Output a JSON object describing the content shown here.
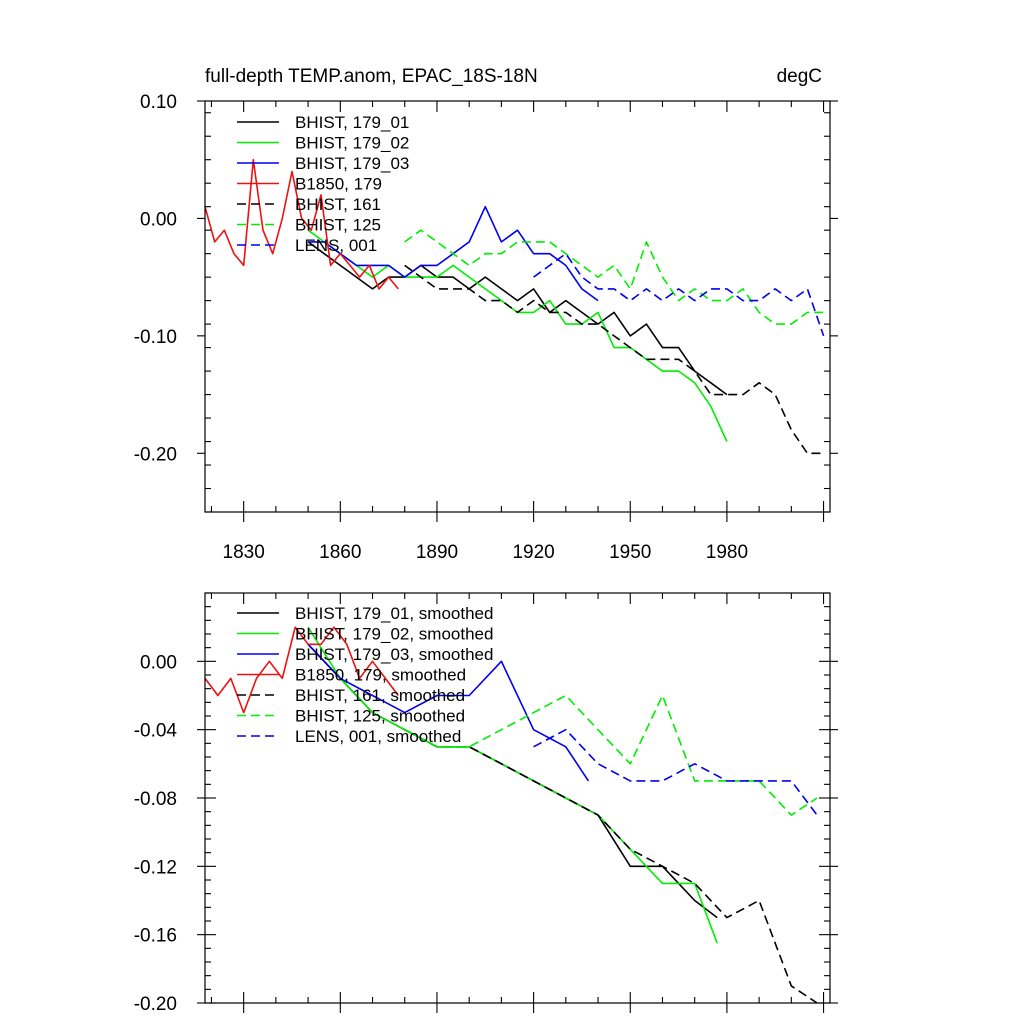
{
  "chart_data": [
    {
      "type": "line",
      "title": "full-depth TEMP.anom, EPAC_18S-18N",
      "units": "degC",
      "xlabel": "",
      "ylabel": "",
      "xlim": [
        1818,
        2012
      ],
      "ylim": [
        -0.25,
        0.1
      ],
      "xticks": [
        "1830",
        "1860",
        "1890",
        "1920",
        "1950",
        "1980"
      ],
      "yticks": [
        "0.10",
        "0.00",
        "-0.10",
        "-0.20"
      ],
      "legend": "top-left",
      "series": [
        {
          "name": "BHIST, 179_01",
          "color": "#000000",
          "dash": "solid",
          "x": [
            1850,
            1855,
            1860,
            1865,
            1870,
            1875,
            1880,
            1885,
            1890,
            1895,
            1900,
            1905,
            1910,
            1915,
            1920,
            1925,
            1930,
            1935,
            1940,
            1945,
            1950,
            1955,
            1960,
            1965,
            1970,
            1975,
            1980
          ],
          "y": [
            -0.02,
            -0.03,
            -0.04,
            -0.05,
            -0.06,
            -0.05,
            -0.05,
            -0.04,
            -0.05,
            -0.05,
            -0.06,
            -0.05,
            -0.06,
            -0.07,
            -0.06,
            -0.08,
            -0.07,
            -0.08,
            -0.09,
            -0.08,
            -0.1,
            -0.09,
            -0.11,
            -0.11,
            -0.13,
            -0.14,
            -0.15
          ]
        },
        {
          "name": "BHIST, 179_02",
          "color": "#00ee00",
          "dash": "solid",
          "x": [
            1850,
            1855,
            1860,
            1865,
            1870,
            1875,
            1880,
            1885,
            1890,
            1895,
            1900,
            1905,
            1910,
            1915,
            1920,
            1925,
            1930,
            1935,
            1940,
            1945,
            1950,
            1955,
            1960,
            1965,
            1970,
            1975,
            1980
          ],
          "y": [
            -0.01,
            -0.02,
            -0.03,
            -0.04,
            -0.05,
            -0.04,
            -0.05,
            -0.05,
            -0.05,
            -0.04,
            -0.05,
            -0.06,
            -0.07,
            -0.08,
            -0.08,
            -0.07,
            -0.09,
            -0.09,
            -0.08,
            -0.11,
            -0.11,
            -0.12,
            -0.13,
            -0.13,
            -0.14,
            -0.16,
            -0.19
          ]
        },
        {
          "name": "BHIST, 179_03",
          "color": "#0000ee",
          "dash": "solid",
          "x": [
            1850,
            1855,
            1860,
            1865,
            1870,
            1875,
            1880,
            1885,
            1890,
            1895,
            1900,
            1905,
            1910,
            1915,
            1920,
            1925,
            1930,
            1935,
            1940
          ],
          "y": [
            -0.02,
            -0.02,
            -0.03,
            -0.04,
            -0.04,
            -0.04,
            -0.05,
            -0.04,
            -0.04,
            -0.03,
            -0.02,
            0.01,
            -0.02,
            -0.01,
            -0.03,
            -0.03,
            -0.04,
            -0.06,
            -0.07
          ]
        },
        {
          "name": "B1850, 179",
          "color": "#ee1111",
          "dash": "solid",
          "x": [
            1818,
            1821,
            1824,
            1827,
            1830,
            1833,
            1836,
            1839,
            1842,
            1845,
            1848,
            1851,
            1854,
            1857,
            1860,
            1863,
            1866,
            1869,
            1872,
            1875,
            1878
          ],
          "y": [
            0.01,
            -0.02,
            -0.01,
            -0.03,
            -0.04,
            0.05,
            -0.01,
            -0.03,
            0.0,
            0.04,
            0.0,
            -0.01,
            0.02,
            -0.04,
            -0.03,
            -0.04,
            -0.05,
            -0.04,
            -0.06,
            -0.05,
            -0.06
          ]
        },
        {
          "name": "BHIST, 161",
          "color": "#000000",
          "dash": "dash",
          "x": [
            1880,
            1885,
            1890,
            1895,
            1900,
            1905,
            1910,
            1915,
            1920,
            1925,
            1930,
            1935,
            1940,
            1945,
            1950,
            1955,
            1960,
            1965,
            1970,
            1975,
            1980,
            1985,
            1990,
            1995,
            2000,
            2005,
            2010
          ],
          "y": [
            -0.04,
            -0.05,
            -0.06,
            -0.06,
            -0.06,
            -0.07,
            -0.07,
            -0.08,
            -0.07,
            -0.08,
            -0.08,
            -0.09,
            -0.09,
            -0.1,
            -0.11,
            -0.12,
            -0.12,
            -0.12,
            -0.13,
            -0.15,
            -0.15,
            -0.15,
            -0.14,
            -0.15,
            -0.18,
            -0.2,
            -0.2
          ]
        },
        {
          "name": "BHIST, 125",
          "color": "#00ee00",
          "dash": "dash",
          "x": [
            1880,
            1885,
            1890,
            1895,
            1900,
            1905,
            1910,
            1915,
            1920,
            1925,
            1930,
            1935,
            1940,
            1945,
            1950,
            1955,
            1960,
            1965,
            1970,
            1975,
            1980,
            1985,
            1990,
            1995,
            2000,
            2005,
            2010
          ],
          "y": [
            -0.02,
            -0.01,
            -0.02,
            -0.03,
            -0.04,
            -0.03,
            -0.03,
            -0.02,
            -0.02,
            -0.02,
            -0.03,
            -0.04,
            -0.05,
            -0.04,
            -0.06,
            -0.02,
            -0.05,
            -0.07,
            -0.06,
            -0.07,
            -0.07,
            -0.06,
            -0.08,
            -0.09,
            -0.09,
            -0.08,
            -0.08
          ]
        },
        {
          "name": "LENS, 001",
          "color": "#0000ee",
          "dash": "dash",
          "x": [
            1920,
            1925,
            1930,
            1935,
            1940,
            1945,
            1950,
            1955,
            1960,
            1965,
            1970,
            1975,
            1980,
            1985,
            1990,
            1995,
            2000,
            2005,
            2010
          ],
          "y": [
            -0.05,
            -0.04,
            -0.03,
            -0.05,
            -0.06,
            -0.06,
            -0.07,
            -0.06,
            -0.07,
            -0.06,
            -0.07,
            -0.06,
            -0.06,
            -0.07,
            -0.07,
            -0.06,
            -0.07,
            -0.06,
            -0.1
          ]
        }
      ]
    },
    {
      "type": "line",
      "title": "",
      "xlabel": "",
      "ylabel": "",
      "xlim": [
        1818,
        2012
      ],
      "ylim": [
        -0.2,
        0.04
      ],
      "xticks": [],
      "yticks": [
        "0.00",
        "-0.04",
        "-0.08",
        "-0.12",
        "-0.16",
        "-0.20"
      ],
      "legend": "top-left",
      "series": [
        {
          "name": "BHIST, 179_01, smoothed",
          "color": "#000000",
          "dash": "solid",
          "x": [
            1850,
            1860,
            1870,
            1880,
            1890,
            1900,
            1910,
            1920,
            1930,
            1940,
            1950,
            1960,
            1970,
            1977
          ],
          "y": [
            0.01,
            -0.01,
            -0.03,
            -0.04,
            -0.05,
            -0.05,
            -0.06,
            -0.07,
            -0.08,
            -0.09,
            -0.12,
            -0.12,
            -0.14,
            -0.15
          ]
        },
        {
          "name": "BHIST, 179_02, smoothed",
          "color": "#00ee00",
          "dash": "solid",
          "x": [
            1850,
            1860,
            1870,
            1880,
            1890,
            1900,
            1910,
            1920,
            1930,
            1940,
            1950,
            1960,
            1970,
            1977
          ],
          "y": [
            0.02,
            -0.01,
            -0.03,
            -0.04,
            -0.05,
            -0.05,
            -0.06,
            -0.07,
            -0.08,
            -0.09,
            -0.11,
            -0.13,
            -0.13,
            -0.165
          ]
        },
        {
          "name": "BHIST, 179_03, smoothed",
          "color": "#0000ee",
          "dash": "solid",
          "x": [
            1850,
            1860,
            1870,
            1880,
            1890,
            1900,
            1910,
            1920,
            1930,
            1937
          ],
          "y": [
            0.01,
            -0.01,
            -0.02,
            -0.03,
            -0.02,
            -0.02,
            0.0,
            -0.04,
            -0.05,
            -0.07
          ]
        },
        {
          "name": "B1850, 179, smoothed",
          "color": "#ee1111",
          "dash": "solid",
          "x": [
            1818,
            1822,
            1826,
            1830,
            1834,
            1838,
            1842,
            1846,
            1850,
            1854,
            1858,
            1862,
            1866,
            1870,
            1874,
            1878
          ],
          "y": [
            -0.01,
            -0.02,
            -0.01,
            -0.03,
            -0.01,
            0.0,
            -0.01,
            0.02,
            0.01,
            0.01,
            0.02,
            0.01,
            -0.01,
            0.0,
            -0.01,
            -0.02
          ]
        },
        {
          "name": "BHIST, 161, smoothed",
          "color": "#000000",
          "dash": "dash",
          "x": [
            1880,
            1890,
            1900,
            1910,
            1920,
            1930,
            1940,
            1950,
            1960,
            1970,
            1980,
            1990,
            2000,
            2008
          ],
          "y": [
            -0.04,
            -0.05,
            -0.05,
            -0.06,
            -0.07,
            -0.08,
            -0.09,
            -0.11,
            -0.12,
            -0.13,
            -0.15,
            -0.14,
            -0.19,
            -0.2
          ]
        },
        {
          "name": "BHIST, 125, smoothed",
          "color": "#00ee00",
          "dash": "dash",
          "x": [
            1880,
            1890,
            1900,
            1910,
            1920,
            1930,
            1940,
            1950,
            1960,
            1970,
            1980,
            1990,
            2000,
            2008
          ],
          "y": [
            -0.04,
            -0.05,
            -0.05,
            -0.04,
            -0.03,
            -0.02,
            -0.04,
            -0.06,
            -0.02,
            -0.07,
            -0.07,
            -0.07,
            -0.09,
            -0.08
          ]
        },
        {
          "name": "LENS, 001, smoothed",
          "color": "#0000ee",
          "dash": "dash",
          "x": [
            1920,
            1930,
            1940,
            1950,
            1960,
            1970,
            1980,
            1990,
            2000,
            2008
          ],
          "y": [
            -0.05,
            -0.04,
            -0.06,
            -0.07,
            -0.07,
            -0.06,
            -0.07,
            -0.07,
            -0.07,
            -0.09
          ]
        }
      ]
    }
  ]
}
